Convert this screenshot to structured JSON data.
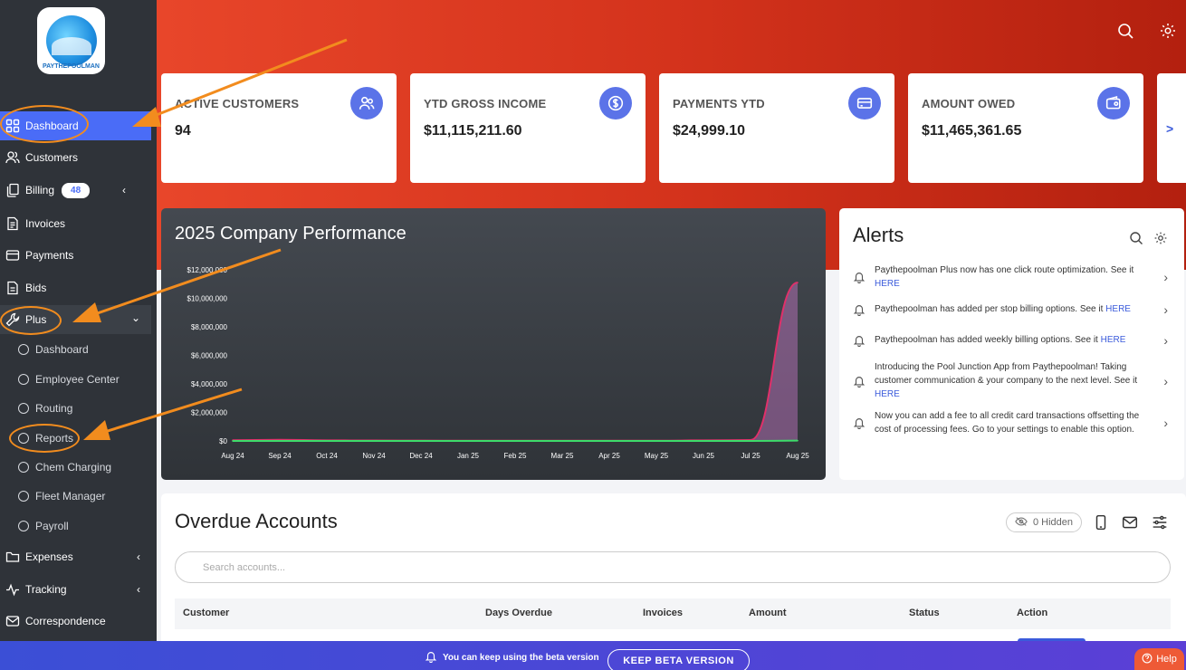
{
  "logo": {
    "brand": "PAYTHEPOOLMAN"
  },
  "sidebar": {
    "items": [
      {
        "label": "Dashboard"
      },
      {
        "label": "Customers"
      },
      {
        "label": "Billing",
        "badge": "48"
      },
      {
        "label": "Invoices"
      },
      {
        "label": "Payments"
      },
      {
        "label": "Bids"
      },
      {
        "label": "Plus"
      },
      {
        "label": "Expenses"
      },
      {
        "label": "Tracking"
      },
      {
        "label": "Correspondence"
      }
    ],
    "plus_sub": [
      {
        "label": "Dashboard"
      },
      {
        "label": "Employee Center"
      },
      {
        "label": "Routing"
      },
      {
        "label": "Reports"
      },
      {
        "label": "Chem Charging"
      },
      {
        "label": "Fleet Manager"
      },
      {
        "label": "Payroll"
      }
    ]
  },
  "stats": [
    {
      "label": "ACTIVE CUSTOMERS",
      "value": "94",
      "icon": "users-icon"
    },
    {
      "label": "YTD GROSS INCOME",
      "value": "$11,115,211.60",
      "icon": "dollar-icon"
    },
    {
      "label": "PAYMENTS YTD",
      "value": "$24,999.10",
      "icon": "card-icon"
    },
    {
      "label": "AMOUNT OWED",
      "value": "$11,465,361.65",
      "icon": "wallet-icon"
    }
  ],
  "stats_more": ">",
  "performance": {
    "title": "2025 Company Performance"
  },
  "chart_data": {
    "type": "area",
    "title": "2025 Company Performance",
    "categories": [
      "Aug 24",
      "Sep 24",
      "Oct 24",
      "Nov 24",
      "Dec 24",
      "Jan 25",
      "Feb 25",
      "Mar 25",
      "Apr 25",
      "May 25",
      "Jun 25",
      "Jul 25",
      "Aug 25"
    ],
    "y_ticks": [
      "$0",
      "$2,000,000",
      "$4,000,000",
      "$6,000,000",
      "$8,000,000",
      "$10,000,000",
      "$12,000,000"
    ],
    "ylim": [
      0,
      12000000
    ],
    "series": [
      {
        "values": [
          50000,
          80000,
          40000,
          30000,
          20000,
          15000,
          15000,
          15000,
          15000,
          15000,
          40000,
          60000,
          11100000
        ],
        "color": "#e0306a"
      },
      {
        "values": [
          0,
          0,
          0,
          0,
          0,
          0,
          0,
          0,
          0,
          0,
          0,
          0,
          20000
        ],
        "color": "#3ddc6a"
      }
    ],
    "grid": false,
    "legend": "none"
  },
  "alerts": {
    "title": "Alerts",
    "items": [
      {
        "text": "Paythepoolman Plus now has one click route optimization. See it ",
        "link": "HERE"
      },
      {
        "text": "Paythepoolman has added per stop billing options. See it ",
        "link": "HERE"
      },
      {
        "text": "Paythepoolman has added weekly billing options. See it ",
        "link": "HERE"
      },
      {
        "text": "Introducing the Pool Junction App from Paythepoolman! Taking customer communication & your company to the next level. See it ",
        "link": "HERE"
      },
      {
        "text": "Now you can add a fee to all credit card transactions offsetting the cost of processing fees. Go to your settings to enable this option.",
        "link": ""
      }
    ]
  },
  "overdue": {
    "title": "Overdue Accounts",
    "hidden": "0 Hidden",
    "search_placeholder": "Search accounts...",
    "columns": [
      "Customer",
      "Days Overdue",
      "Invoices",
      "Amount",
      "Status",
      "Action"
    ]
  },
  "beta": {
    "message": "You can keep using the beta version",
    "button": "KEEP BETA VERSION"
  },
  "help": "Help",
  "colors": {
    "accent": "#4a6cf7",
    "sidebar": "#2f3339",
    "hero": "#d4331c",
    "annotation": "#f28c1e"
  }
}
